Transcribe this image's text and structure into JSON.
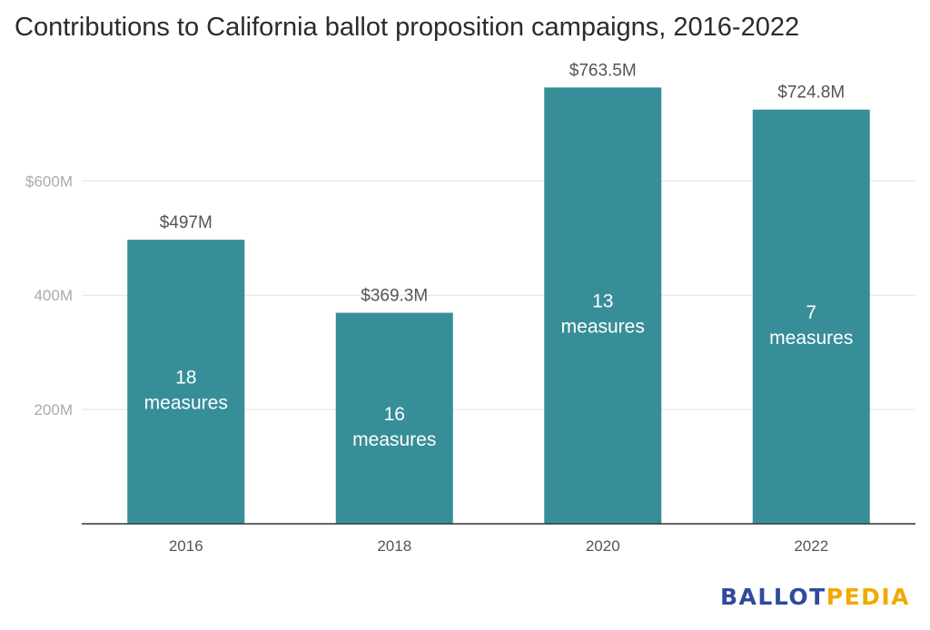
{
  "chart_data": {
    "type": "bar",
    "title": "Contributions to California ballot proposition campaigns, 2016-2022",
    "categories": [
      "2016",
      "2018",
      "2020",
      "2022"
    ],
    "values": [
      497,
      369.3,
      763.5,
      724.8
    ],
    "value_labels": [
      "$497M",
      "$369.3M",
      "$763.5M",
      "$724.8M"
    ],
    "inner_labels": [
      [
        "18",
        "measures"
      ],
      [
        "16",
        "measures"
      ],
      [
        "13",
        "measures"
      ],
      [
        "7",
        "measures"
      ]
    ],
    "y_ticks": [
      {
        "value": 200,
        "label": "200M"
      },
      {
        "value": 400,
        "label": "400M"
      },
      {
        "value": 600,
        "label": "$600M"
      }
    ],
    "ylim": [
      0,
      800
    ],
    "grid": true,
    "legend": "none",
    "xlabel": "",
    "ylabel": "",
    "colors": {
      "bar": "#378e98",
      "grid": "#e3e3e3",
      "axis": "#333333",
      "tick_text": "#aaaaaa",
      "label_text": "#555555",
      "inner_text": "#ffffff"
    }
  },
  "logo": {
    "part1": "BALLOT",
    "part2": "PEDIA"
  }
}
